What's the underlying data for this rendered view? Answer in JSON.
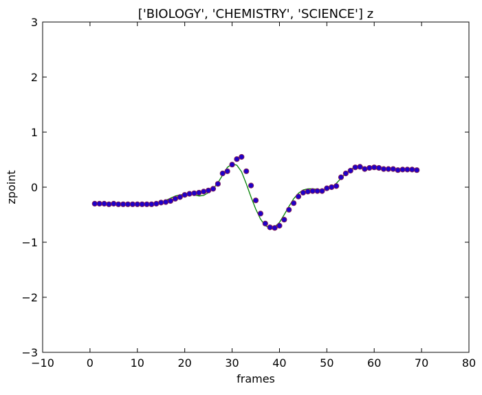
{
  "chart_data": {
    "type": "scatter",
    "title": "['BIOLOGY', 'CHEMISTRY', 'SCIENCE'] z",
    "xlabel": "frames",
    "ylabel": "zpoint",
    "xlim": [
      -10,
      80
    ],
    "ylim": [
      -3,
      3
    ],
    "x_ticks": [
      -10,
      0,
      10,
      20,
      30,
      40,
      50,
      60,
      70,
      80
    ],
    "y_ticks": [
      -3,
      -2,
      -1,
      0,
      1,
      2,
      3
    ],
    "x_tick_labels": [
      "−10",
      "0",
      "10",
      "20",
      "30",
      "40",
      "50",
      "60",
      "70",
      "80"
    ],
    "y_tick_labels": [
      "−3",
      "−2",
      "−1",
      "0",
      "1",
      "2",
      "3"
    ],
    "grid": false,
    "series": [
      {
        "kind": "scatter",
        "color": "#1f00c8",
        "edge_color": "#7a1a5a",
        "x": [
          1,
          2,
          3,
          4,
          5,
          6,
          7,
          8,
          9,
          10,
          11,
          12,
          13,
          14,
          15,
          16,
          17,
          18,
          19,
          20,
          21,
          22,
          23,
          24,
          25,
          26,
          27,
          28,
          29,
          30,
          31,
          32,
          33,
          34,
          35,
          36,
          37,
          38,
          39,
          40,
          41,
          42,
          43,
          44,
          45,
          46,
          47,
          48,
          49,
          50,
          51,
          52,
          53,
          54,
          55,
          56,
          57,
          58,
          59,
          60,
          61,
          62,
          63,
          64,
          65,
          66,
          67,
          68,
          69
        ],
        "y": [
          -0.3,
          -0.3,
          -0.3,
          -0.31,
          -0.3,
          -0.31,
          -0.31,
          -0.31,
          -0.31,
          -0.31,
          -0.31,
          -0.31,
          -0.31,
          -0.3,
          -0.28,
          -0.27,
          -0.25,
          -0.21,
          -0.18,
          -0.14,
          -0.12,
          -0.11,
          -0.1,
          -0.08,
          -0.06,
          -0.03,
          0.06,
          0.25,
          0.29,
          0.41,
          0.51,
          0.55,
          0.29,
          0.03,
          -0.24,
          -0.48,
          -0.66,
          -0.73,
          -0.74,
          -0.7,
          -0.59,
          -0.41,
          -0.29,
          -0.17,
          -0.1,
          -0.08,
          -0.07,
          -0.07,
          -0.07,
          -0.02,
          0.0,
          0.02,
          0.18,
          0.25,
          0.3,
          0.36,
          0.37,
          0.33,
          0.35,
          0.36,
          0.35,
          0.33,
          0.33,
          0.33,
          0.31,
          0.32,
          0.32,
          0.32,
          0.31
        ]
      },
      {
        "kind": "line",
        "color": "#008000",
        "x": [
          1,
          2,
          3,
          4,
          5,
          6,
          7,
          8,
          9,
          10,
          11,
          12,
          13,
          14,
          15,
          16,
          17,
          18,
          19,
          20,
          21,
          22,
          23,
          24,
          25,
          26,
          27,
          28,
          29,
          30,
          31,
          32,
          33,
          34,
          35,
          36,
          37,
          38,
          39,
          40,
          41,
          42,
          43,
          44,
          45,
          46,
          47,
          48,
          49,
          50,
          51,
          52,
          53,
          54,
          55,
          56,
          57,
          58,
          59,
          60,
          61,
          62,
          63,
          64,
          65,
          66,
          67,
          68,
          69
        ],
        "y": [
          -0.3,
          -0.29,
          -0.28,
          -0.29,
          -0.3,
          -0.32,
          -0.33,
          -0.32,
          -0.31,
          -0.3,
          -0.31,
          -0.32,
          -0.33,
          -0.32,
          -0.28,
          -0.24,
          -0.2,
          -0.16,
          -0.14,
          -0.13,
          -0.12,
          -0.14,
          -0.16,
          -0.15,
          -0.1,
          -0.03,
          0.08,
          0.22,
          0.36,
          0.42,
          0.4,
          0.28,
          0.06,
          -0.18,
          -0.4,
          -0.58,
          -0.7,
          -0.74,
          -0.72,
          -0.64,
          -0.5,
          -0.35,
          -0.21,
          -0.11,
          -0.05,
          -0.03,
          -0.03,
          -0.04,
          -0.05,
          -0.04,
          -0.01,
          0.07,
          0.16,
          0.25,
          0.32,
          0.37,
          0.38,
          0.36,
          0.34,
          0.33,
          0.33,
          0.32,
          0.32,
          0.31,
          0.31,
          0.3,
          0.3,
          0.3,
          0.3
        ]
      }
    ]
  }
}
